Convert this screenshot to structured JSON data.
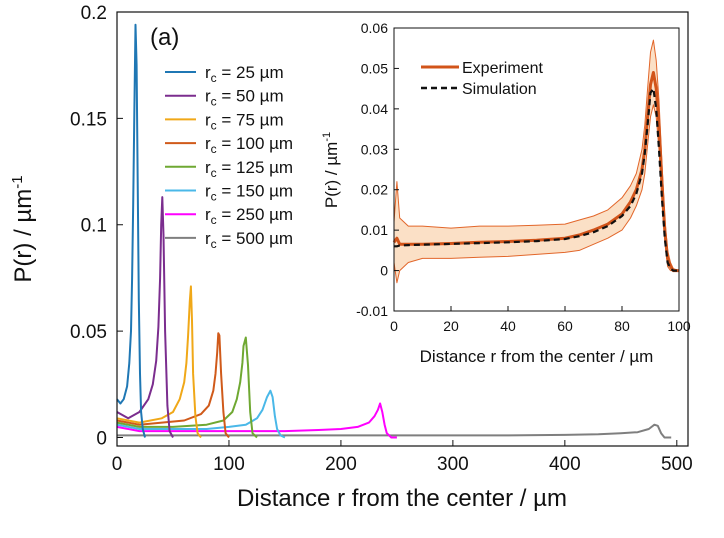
{
  "chart_data": [
    {
      "id": "main",
      "type": "line",
      "panel_label": "(a)",
      "xlabel": "Distance r from the center / µm",
      "ylabel_main": "P(r) / µm",
      "ylabel_sup": "-1",
      "xlim": [
        0,
        510
      ],
      "ylim": [
        -0.004,
        0.2
      ],
      "xticks": [
        0,
        100,
        200,
        300,
        400,
        500
      ],
      "xtick_labels": [
        "0",
        "100",
        "200",
        "300",
        "400",
        "500"
      ],
      "yticks": [
        0,
        0.05,
        0.1,
        0.15,
        0.2
      ],
      "ytick_labels": [
        "0",
        "0.05",
        "0.1",
        "0.15",
        "0.2"
      ],
      "grid": false,
      "legend_position": "top-left",
      "legend": [
        {
          "prefix": "r",
          "sub": "c",
          "suffix": " = 25 µm",
          "color": "#1f77b4"
        },
        {
          "prefix": "r",
          "sub": "c",
          "suffix": " = 50 µm",
          "color": "#7b2d8e"
        },
        {
          "prefix": "r",
          "sub": "c",
          "suffix": " = 75 µm",
          "color": "#f0a818"
        },
        {
          "prefix": "r",
          "sub": "c",
          "suffix": " = 100 µm",
          "color": "#d05a1a"
        },
        {
          "prefix": "r",
          "sub": "c",
          "suffix": " = 125 µm",
          "color": "#6fa832"
        },
        {
          "prefix": "r",
          "sub": "c",
          "suffix": " = 150 µm",
          "color": "#4ab8e8"
        },
        {
          "prefix": "r",
          "sub": "c",
          "suffix": " = 250 µm",
          "color": "#ff00ff"
        },
        {
          "prefix": "r",
          "sub": "c",
          "suffix": " = 500 µm",
          "color": "#7f7f7f"
        }
      ],
      "series": [
        {
          "color": "#7f7f7f",
          "x": [
            0,
            50,
            100,
            150,
            200,
            250,
            300,
            350,
            400,
            430,
            450,
            465,
            475,
            480,
            483,
            486,
            489,
            495
          ],
          "y": [
            0.001,
            0.001,
            0.001,
            0.001,
            0.001,
            0.001,
            0.001,
            0.001,
            0.0012,
            0.0015,
            0.002,
            0.0025,
            0.004,
            0.006,
            0.0055,
            0.002,
            0.0,
            0.0
          ]
        },
        {
          "color": "#ff00ff",
          "x": [
            0,
            20,
            50,
            100,
            150,
            180,
            200,
            215,
            225,
            230,
            233,
            235,
            237,
            239,
            241,
            245,
            250
          ],
          "y": [
            0.005,
            0.003,
            0.003,
            0.003,
            0.003,
            0.0035,
            0.004,
            0.005,
            0.007,
            0.01,
            0.013,
            0.016,
            0.012,
            0.006,
            0.002,
            0.0,
            0.0
          ]
        },
        {
          "color": "#4ab8e8",
          "x": [
            0,
            20,
            50,
            80,
            100,
            115,
            125,
            130,
            134,
            137,
            139,
            141,
            143,
            146,
            150
          ],
          "y": [
            0.006,
            0.004,
            0.004,
            0.004,
            0.005,
            0.006,
            0.009,
            0.013,
            0.019,
            0.022,
            0.019,
            0.01,
            0.004,
            0.001,
            0.0
          ]
        },
        {
          "color": "#6fa832",
          "x": [
            0,
            20,
            50,
            80,
            95,
            103,
            107,
            110,
            112,
            113,
            115,
            117,
            119,
            121,
            125
          ],
          "y": [
            0.007,
            0.005,
            0.005,
            0.006,
            0.008,
            0.012,
            0.018,
            0.026,
            0.035,
            0.043,
            0.047,
            0.034,
            0.012,
            0.002,
            0.0
          ]
        },
        {
          "color": "#d05a1a",
          "x": [
            0,
            20,
            40,
            60,
            75,
            82,
            86,
            88,
            89.5,
            90.5,
            91.5,
            93,
            95,
            97,
            100
          ],
          "y": [
            0.008,
            0.006,
            0.007,
            0.008,
            0.011,
            0.015,
            0.022,
            0.03,
            0.04,
            0.049,
            0.048,
            0.03,
            0.012,
            0.002,
            0.0
          ]
        },
        {
          "color": "#f0a818",
          "x": [
            0,
            20,
            40,
            50,
            56,
            60,
            62,
            63.5,
            65,
            66,
            67,
            68,
            70,
            72,
            75
          ],
          "y": [
            0.009,
            0.007,
            0.009,
            0.012,
            0.018,
            0.026,
            0.035,
            0.048,
            0.064,
            0.071,
            0.055,
            0.03,
            0.01,
            0.002,
            0.0
          ]
        },
        {
          "color": "#7b2d8e",
          "x": [
            0,
            10,
            20,
            28,
            32,
            35,
            37,
            38.5,
            39.5,
            40.5,
            41.5,
            43,
            45,
            47,
            50
          ],
          "y": [
            0.012,
            0.009,
            0.012,
            0.018,
            0.025,
            0.036,
            0.052,
            0.075,
            0.1,
            0.113,
            0.095,
            0.05,
            0.015,
            0.003,
            0.0
          ]
        },
        {
          "color": "#1f77b4",
          "x": [
            0,
            3,
            6,
            9,
            11,
            12.5,
            13.5,
            14.5,
            15.5,
            16.5,
            17.5,
            18.5,
            19.5,
            20.5,
            21.5,
            23,
            25
          ],
          "y": [
            0.018,
            0.016,
            0.018,
            0.024,
            0.035,
            0.05,
            0.075,
            0.11,
            0.155,
            0.194,
            0.175,
            0.12,
            0.065,
            0.03,
            0.012,
            0.004,
            0.0
          ]
        }
      ]
    },
    {
      "id": "inset",
      "type": "line",
      "xlabel": "Distance r from the center / µm",
      "ylabel_main": "P(r) / µm",
      "ylabel_sup": "-1",
      "xlim": [
        0,
        100
      ],
      "ylim": [
        -0.01,
        0.06
      ],
      "xticks": [
        0,
        20,
        40,
        60,
        80,
        100
      ],
      "xtick_labels": [
        "0",
        "20",
        "40",
        "60",
        "80",
        "100"
      ],
      "yticks": [
        -0.01,
        0,
        0.01,
        0.02,
        0.03,
        0.04,
        0.05,
        0.06
      ],
      "ytick_labels": [
        "-0.01",
        "0",
        "0.01",
        "0.02",
        "0.03",
        "0.04",
        "0.05",
        "0.06"
      ],
      "grid": false,
      "legend_position": "top-left",
      "legend": [
        {
          "label": "Experiment",
          "color": "#d2541a",
          "style": "solid"
        },
        {
          "label": "Simulation",
          "color": "#111111",
          "style": "dashed"
        }
      ],
      "band_color": "#fbe0c6",
      "x": [
        0,
        1,
        2,
        5,
        10,
        20,
        30,
        40,
        50,
        60,
        65,
        70,
        75,
        80,
        83,
        85,
        87,
        88,
        89,
        90,
        91,
        92,
        93,
        94,
        95,
        96,
        97,
        98,
        100
      ],
      "experiment_mean": [
        0.007,
        0.008,
        0.0065,
        0.0065,
        0.0065,
        0.0067,
        0.007,
        0.0072,
        0.0075,
        0.008,
        0.0088,
        0.01,
        0.0115,
        0.014,
        0.017,
        0.02,
        0.025,
        0.03,
        0.038,
        0.046,
        0.049,
        0.045,
        0.036,
        0.022,
        0.01,
        0.003,
        0.001,
        0.0,
        0.0
      ],
      "experiment_upper": [
        0.012,
        0.022,
        0.013,
        0.011,
        0.011,
        0.0105,
        0.011,
        0.011,
        0.0112,
        0.0115,
        0.0125,
        0.0135,
        0.015,
        0.018,
        0.021,
        0.024,
        0.03,
        0.036,
        0.045,
        0.054,
        0.057,
        0.052,
        0.042,
        0.027,
        0.013,
        0.005,
        0.002,
        0.0005,
        0.0
      ],
      "experiment_lower": [
        0.002,
        -0.003,
        0.0,
        0.002,
        0.003,
        0.003,
        0.0033,
        0.0035,
        0.004,
        0.0045,
        0.005,
        0.0065,
        0.008,
        0.01,
        0.013,
        0.016,
        0.02,
        0.024,
        0.031,
        0.038,
        0.041,
        0.038,
        0.03,
        0.017,
        0.007,
        0.001,
        0.0,
        0.0,
        0.0
      ],
      "simulation": [
        0.006,
        0.006,
        0.0062,
        0.0063,
        0.0064,
        0.0066,
        0.0068,
        0.007,
        0.0073,
        0.0078,
        0.0085,
        0.0095,
        0.011,
        0.0135,
        0.016,
        0.019,
        0.024,
        0.029,
        0.036,
        0.044,
        0.045,
        0.04,
        0.03,
        0.018,
        0.008,
        0.002,
        0.0005,
        0.0,
        0.0
      ]
    }
  ]
}
